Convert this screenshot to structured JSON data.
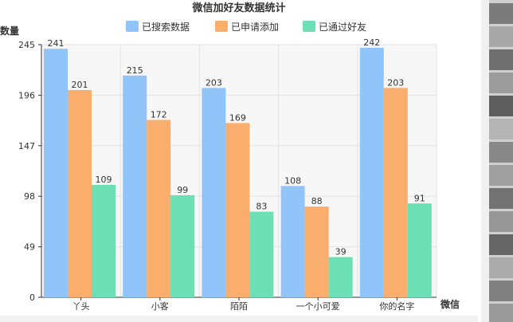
{
  "chart_data": {
    "type": "bar",
    "title": "微信加好友数据统计",
    "ylabel": "数量",
    "xlabel": "微信",
    "categories": [
      "丫头",
      "小客",
      "陌陌",
      "一个小可爱",
      "你的名字"
    ],
    "series": [
      {
        "name": "已搜索数据",
        "values": [
          241,
          215,
          203,
          108,
          242
        ],
        "color": "#91c4f8"
      },
      {
        "name": "已申请添加",
        "values": [
          201,
          172,
          169,
          88,
          203
        ],
        "color": "#f9ae6d"
      },
      {
        "name": "已通过好友",
        "values": [
          109,
          99,
          83,
          39,
          91
        ],
        "color": "#6ce0b4"
      }
    ],
    "yticks": [
      0,
      49,
      98,
      147,
      196,
      245
    ],
    "ylim": [
      0,
      245
    ],
    "grid": true,
    "legend": "top"
  },
  "colors": {
    "grid": "#e3e3e3",
    "plot_bg": "#f7f7f7",
    "axis": "#333333",
    "label": "#333333"
  }
}
